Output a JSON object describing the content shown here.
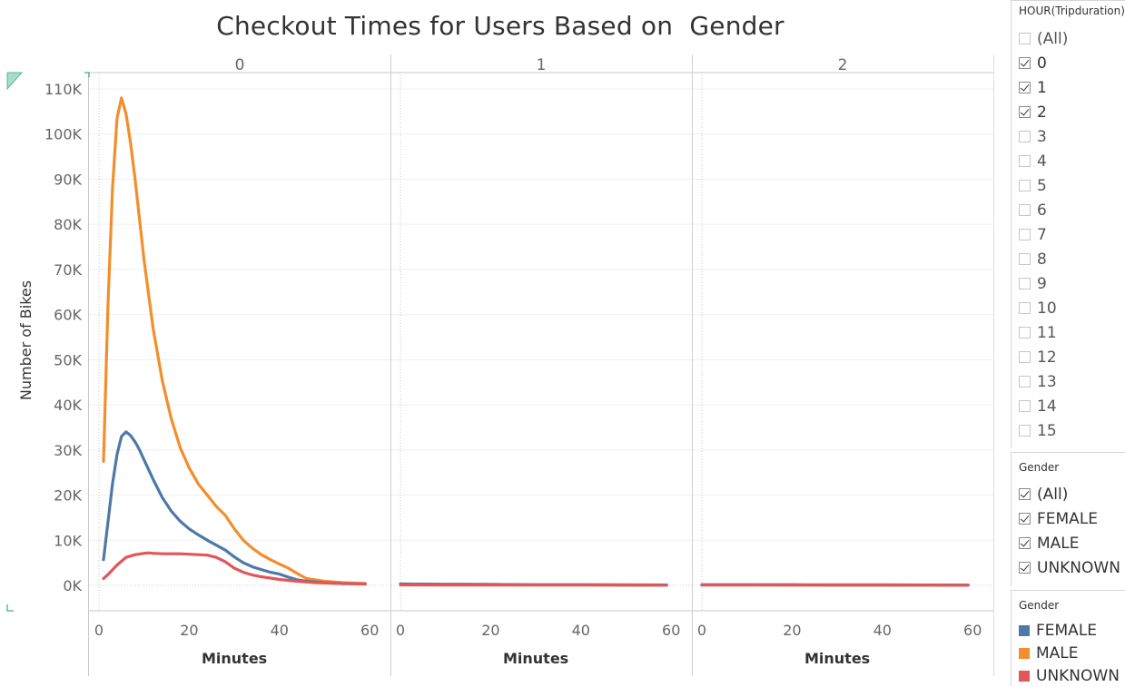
{
  "chart_data": {
    "type": "line",
    "title": "Checkout Times for Users Based on  Gender",
    "ylabel": "Number of Bikes",
    "xlabel": "Minutes",
    "ylim": [
      0,
      110000
    ],
    "y_ticks": [
      "110K",
      "100K",
      "90K",
      "80K",
      "70K",
      "60K",
      "50K",
      "40K",
      "30K",
      "20K",
      "10K",
      "0K"
    ],
    "y_tick_values": [
      110000,
      100000,
      90000,
      80000,
      70000,
      60000,
      50000,
      40000,
      30000,
      20000,
      10000,
      0
    ],
    "x_ticks": [
      "0",
      "20",
      "40",
      "60"
    ],
    "x_tick_values": [
      0,
      20,
      40,
      60
    ],
    "grid": true,
    "legend_position": "right",
    "facets": [
      {
        "label": "0",
        "series": [
          {
            "name": "MALE",
            "color": "#f28e2b",
            "x": [
              1,
              2,
              3,
              4,
              5,
              6,
              7,
              8,
              9,
              10,
              12,
              14,
              16,
              18,
              20,
              22,
              24,
              26,
              28,
              30,
              32,
              34,
              36,
              38,
              40,
              42,
              44,
              46,
              50,
              54,
              59
            ],
            "y": [
              27500,
              62000,
              88000,
              103500,
              108000,
              104500,
              98000,
              90000,
              81000,
              72000,
              57000,
              45500,
              37000,
              30500,
              26000,
              22500,
              20000,
              17500,
              15500,
              12500,
              10000,
              8200,
              6800,
              5700,
              4700,
              3800,
              2600,
              1500,
              900,
              600,
              400
            ]
          },
          {
            "name": "FEMALE",
            "color": "#4e79a7",
            "x": [
              1,
              2,
              3,
              4,
              5,
              6,
              7,
              8,
              9,
              10,
              12,
              14,
              16,
              18,
              20,
              22,
              24,
              26,
              28,
              30,
              32,
              34,
              36,
              38,
              40,
              42,
              44,
              46,
              50,
              54,
              59
            ],
            "y": [
              5700,
              14000,
              22500,
              29000,
              33000,
              34000,
              33200,
              31800,
              30000,
              27800,
              23500,
              19500,
              16500,
              14200,
              12500,
              11200,
              10000,
              8900,
              7800,
              6300,
              5000,
              4100,
              3500,
              2900,
              2500,
              1800,
              1200,
              900,
              600,
              400,
              300
            ]
          },
          {
            "name": "UNKNOWN",
            "color": "#e15759",
            "x": [
              1,
              2,
              4,
              6,
              8,
              10,
              11,
              12,
              14,
              16,
              18,
              20,
              22,
              24,
              26,
              28,
              30,
              32,
              34,
              36,
              38,
              40,
              44,
              48,
              54,
              59
            ],
            "y": [
              1500,
              2400,
              4500,
              6200,
              6800,
              7100,
              7200,
              7100,
              7000,
              7000,
              7000,
              6900,
              6800,
              6700,
              6200,
              5200,
              3800,
              2900,
              2300,
              1900,
              1600,
              1300,
              900,
              600,
              400,
              300
            ]
          }
        ]
      },
      {
        "label": "1",
        "series": [
          {
            "name": "MALE",
            "color": "#f28e2b",
            "x": [
              0,
              10,
              20,
              30,
              40,
              50,
              59
            ],
            "y": [
              300,
              250,
              200,
              150,
              120,
              100,
              90
            ]
          },
          {
            "name": "FEMALE",
            "color": "#4e79a7",
            "x": [
              0,
              10,
              20,
              30,
              40,
              50,
              59
            ],
            "y": [
              300,
              250,
              200,
              150,
              120,
              100,
              90
            ]
          },
          {
            "name": "UNKNOWN",
            "color": "#e15759",
            "x": [
              0,
              10,
              20,
              30,
              40,
              50,
              59
            ],
            "y": [
              100,
              90,
              80,
              70,
              60,
              50,
              40
            ]
          }
        ]
      },
      {
        "label": "2",
        "series": [
          {
            "name": "MALE",
            "color": "#f28e2b",
            "x": [
              0,
              10,
              20,
              30,
              40,
              50,
              59
            ],
            "y": [
              150,
              130,
              120,
              110,
              100,
              90,
              80
            ]
          },
          {
            "name": "FEMALE",
            "color": "#4e79a7",
            "x": [
              0,
              10,
              20,
              30,
              40,
              50,
              59
            ],
            "y": [
              150,
              130,
              120,
              110,
              100,
              90,
              80
            ]
          },
          {
            "name": "UNKNOWN",
            "color": "#e15759",
            "x": [
              0,
              10,
              20,
              30,
              40,
              50,
              59
            ],
            "y": [
              60,
              55,
              50,
              45,
              40,
              35,
              30
            ]
          }
        ]
      }
    ]
  },
  "filters": {
    "hour": {
      "title": "HOUR(Tripduration)",
      "items": [
        {
          "label": "(All)",
          "checked": false
        },
        {
          "label": "0",
          "checked": true
        },
        {
          "label": "1",
          "checked": true
        },
        {
          "label": "2",
          "checked": true
        },
        {
          "label": "3",
          "checked": false
        },
        {
          "label": "4",
          "checked": false
        },
        {
          "label": "5",
          "checked": false
        },
        {
          "label": "6",
          "checked": false
        },
        {
          "label": "7",
          "checked": false
        },
        {
          "label": "8",
          "checked": false
        },
        {
          "label": "9",
          "checked": false
        },
        {
          "label": "10",
          "checked": false
        },
        {
          "label": "11",
          "checked": false
        },
        {
          "label": "12",
          "checked": false
        },
        {
          "label": "13",
          "checked": false
        },
        {
          "label": "14",
          "checked": false
        },
        {
          "label": "15",
          "checked": false
        }
      ]
    },
    "gender": {
      "title": "Gender",
      "items": [
        {
          "label": "(All)",
          "checked": true
        },
        {
          "label": "FEMALE",
          "checked": true
        },
        {
          "label": "MALE",
          "checked": true
        },
        {
          "label": "UNKNOWN",
          "checked": true
        }
      ]
    }
  },
  "legend": {
    "title": "Gender",
    "items": [
      {
        "label": "FEMALE",
        "color": "#4e79a7"
      },
      {
        "label": "MALE",
        "color": "#f28e2b"
      },
      {
        "label": "UNKNOWN",
        "color": "#e15759"
      }
    ]
  }
}
